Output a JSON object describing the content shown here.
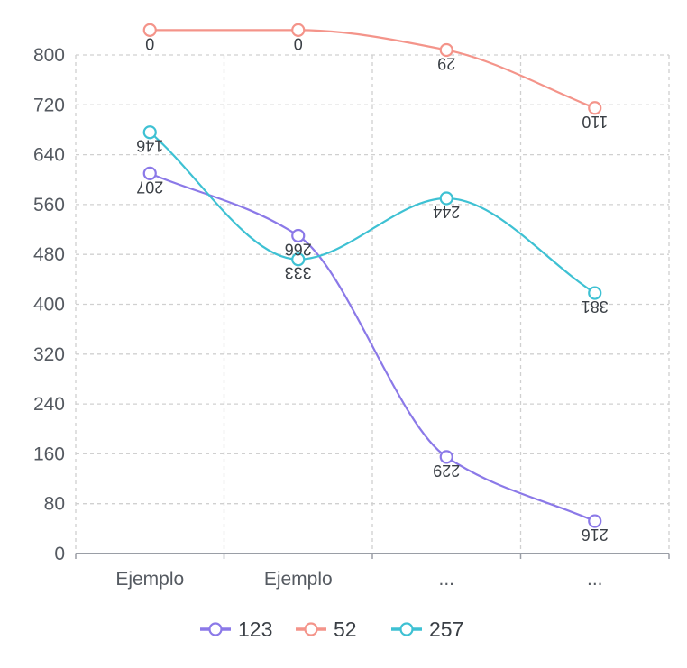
{
  "chart_data": {
    "type": "line",
    "categories": [
      "Ejemplo",
      "Ejemplo",
      "...",
      "..."
    ],
    "yticks": [
      0,
      80,
      160,
      240,
      320,
      400,
      480,
      560,
      640,
      720,
      800
    ],
    "ylim": [
      0,
      800
    ],
    "grid": true,
    "legend_position": "bottom",
    "series": [
      {
        "name": "123",
        "color": "#8b79e8",
        "values": [
          610,
          510,
          155,
          52
        ],
        "labels": [
          "207",
          "266",
          "229",
          "216"
        ]
      },
      {
        "name": "52",
        "color": "#f4948a",
        "values": [
          840,
          840,
          808,
          715
        ],
        "labels": [
          "0",
          "0",
          "29",
          "110"
        ]
      },
      {
        "name": "257",
        "color": "#3ec1d3",
        "values": [
          676,
          472,
          570,
          418
        ],
        "labels": [
          "146",
          "333",
          "244",
          "381"
        ]
      }
    ]
  }
}
